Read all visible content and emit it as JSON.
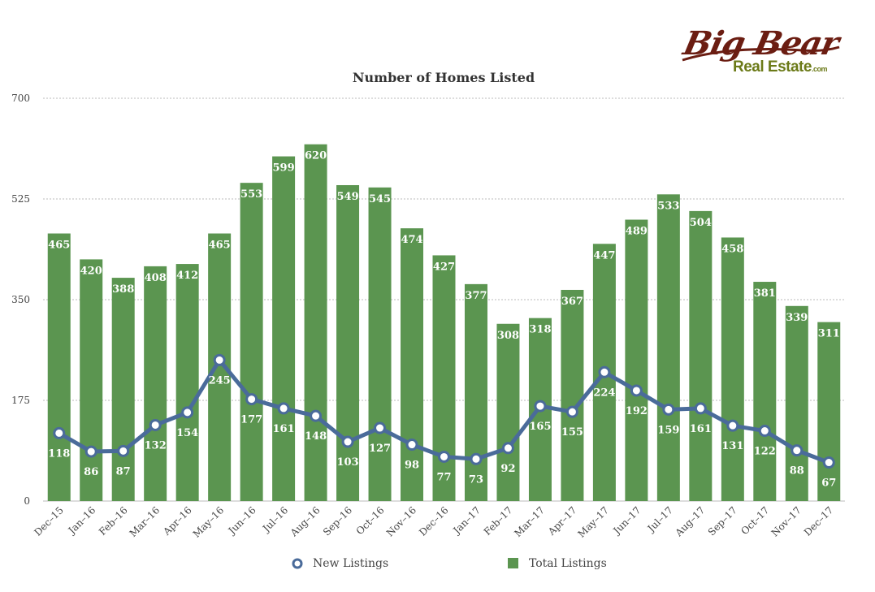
{
  "title": "Number of Homes Listed",
  "logo": {
    "line1": "Big Bear",
    "line2": "Real Estate",
    "suffix": ".com"
  },
  "colors": {
    "bar": "#5b9550",
    "line": "#4a6b9a",
    "grid": "#bbbbbb",
    "axis_text": "#444444"
  },
  "legend": {
    "new_listings": "New Listings",
    "total_listings": "Total Listings"
  },
  "chart_data": {
    "type": "bar",
    "title": "Number of Homes Listed",
    "categories": [
      "Dec–15",
      "Jan–16",
      "Feb–16",
      "Mar–16",
      "Apr–16",
      "May–16",
      "Jun–16",
      "Jul–16",
      "Aug–16",
      "Sep–16",
      "Oct–16",
      "Nov–16",
      "Dec–16",
      "Jan–17",
      "Feb–17",
      "Mar–17",
      "Apr–17",
      "May–17",
      "Jun–17",
      "Jul–17",
      "Aug–17",
      "Sep–17",
      "Oct–17",
      "Nov–17",
      "Dec–17"
    ],
    "series": [
      {
        "name": "Total Listings",
        "type": "bar",
        "values": [
          465,
          420,
          388,
          408,
          412,
          465,
          553,
          599,
          620,
          549,
          545,
          474,
          427,
          377,
          308,
          318,
          367,
          447,
          489,
          533,
          504,
          458,
          381,
          339,
          311
        ]
      },
      {
        "name": "New Listings",
        "type": "line",
        "values": [
          118,
          86,
          87,
          132,
          154,
          245,
          177,
          161,
          148,
          103,
          127,
          98,
          77,
          73,
          92,
          165,
          155,
          224,
          192,
          159,
          161,
          131,
          122,
          88,
          67
        ]
      }
    ],
    "ylim": [
      0,
      700
    ],
    "yticks": [
      0,
      175,
      350,
      525,
      700
    ],
    "grid": true,
    "legend_position": "bottom"
  }
}
